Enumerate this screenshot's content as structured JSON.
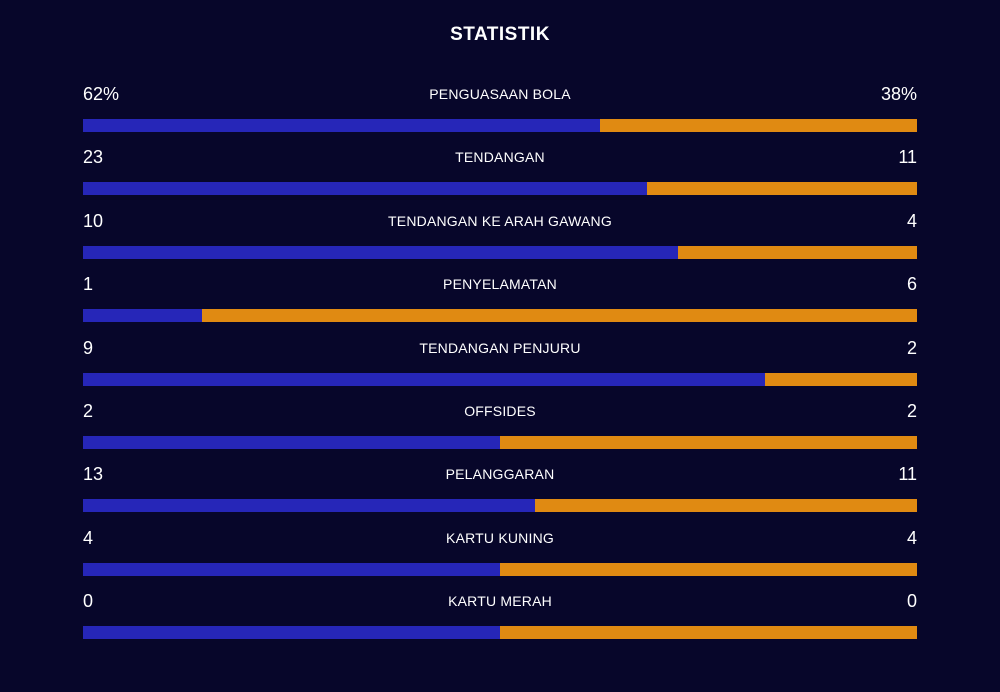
{
  "title": "STATISTIK",
  "colors": {
    "background": "#07062a",
    "home": "#2626b8",
    "away": "#e08a12"
  },
  "stats": [
    {
      "label": "PENGUASAAN BOLA",
      "home": "62%",
      "away": "38%",
      "home_share": 0.62
    },
    {
      "label": "TENDANGAN",
      "home": "23",
      "away": "11",
      "home_share": 0.676
    },
    {
      "label": "TENDANGAN KE ARAH GAWANG",
      "home": "10",
      "away": "4",
      "home_share": 0.714
    },
    {
      "label": "PENYELAMATAN",
      "home": "1",
      "away": "6",
      "home_share": 0.143
    },
    {
      "label": "TENDANGAN PENJURU",
      "home": "9",
      "away": "2",
      "home_share": 0.818
    },
    {
      "label": "OFFSIDES",
      "home": "2",
      "away": "2",
      "home_share": 0.5
    },
    {
      "label": "PELANGGARAN",
      "home": "13",
      "away": "11",
      "home_share": 0.542
    },
    {
      "label": "KARTU KUNING",
      "home": "4",
      "away": "4",
      "home_share": 0.5
    },
    {
      "label": "KARTU MERAH",
      "home": "0",
      "away": "0",
      "home_share": 0.5
    }
  ]
}
